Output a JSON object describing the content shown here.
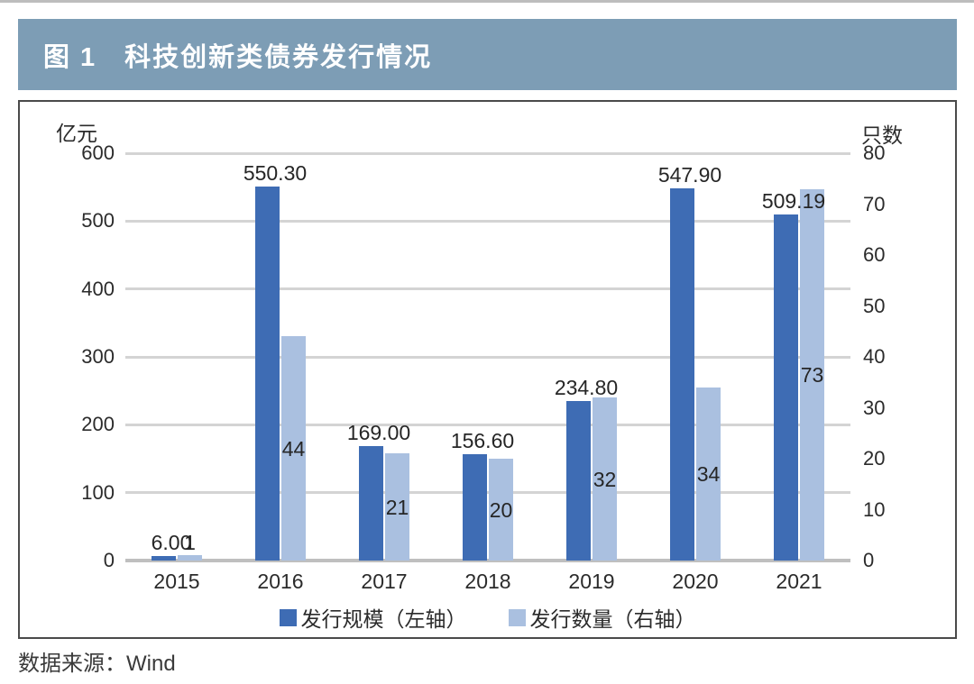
{
  "figure": {
    "title": "图 1　科技创新类债券发行情况"
  },
  "source": {
    "label": "数据来源：Wind"
  },
  "colors": {
    "title_bar_bg": "#7d9db5",
    "bar_dark": "#3e6cb4",
    "bar_light": "#aac0e0",
    "gridline": "#d4d4d4",
    "axis_line": "#bfbfbf"
  },
  "chart_data": {
    "type": "bar",
    "title": "图 1　科技创新类债券发行情况",
    "categories": [
      "2015",
      "2016",
      "2017",
      "2018",
      "2019",
      "2020",
      "2021"
    ],
    "series": [
      {
        "name": "发行规模（左轴）",
        "axis": "left",
        "color": "#3e6cb4",
        "values": [
          6.0,
          550.3,
          169.0,
          156.6,
          234.8,
          547.9,
          509.19
        ],
        "labels": [
          "6.00",
          "550.30",
          "169.00",
          "156.60",
          "234.80",
          "547.90",
          "509.19"
        ]
      },
      {
        "name": "发行数量（右轴）",
        "axis": "right",
        "color": "#aac0e0",
        "values": [
          1,
          44,
          21,
          20,
          32,
          34,
          73
        ],
        "labels": [
          "1",
          "44",
          "21",
          "20",
          "32",
          "34",
          "73"
        ]
      }
    ],
    "left_axis": {
      "unit": "亿元",
      "min": 0,
      "max": 600,
      "step": 100,
      "ticks": [
        "0",
        "100",
        "200",
        "300",
        "400",
        "500",
        "600"
      ]
    },
    "right_axis": {
      "unit": "只数",
      "min": 0,
      "max": 80,
      "step": 10,
      "ticks": [
        "0",
        "10",
        "20",
        "30",
        "40",
        "50",
        "60",
        "70",
        "80"
      ]
    },
    "grid": true,
    "legend_position": "bottom"
  }
}
